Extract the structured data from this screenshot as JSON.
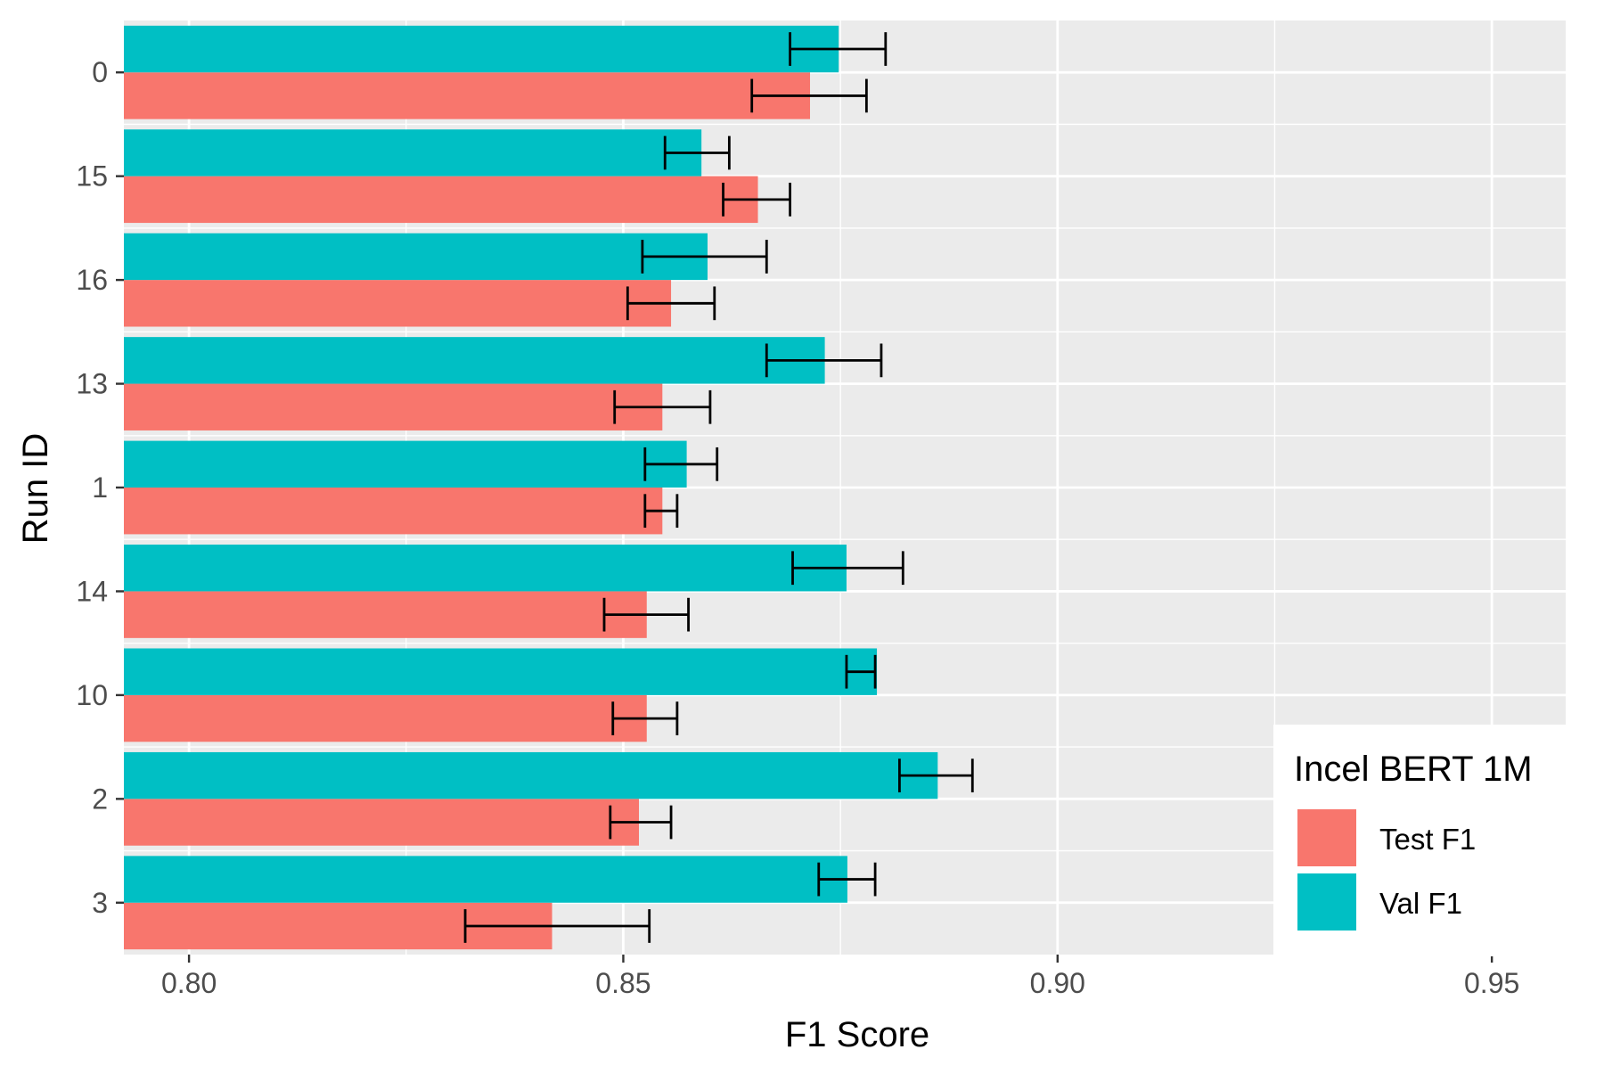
{
  "chart_data": {
    "type": "bar",
    "orientation": "horizontal",
    "xlabel": "F1 Score",
    "ylabel": "Run ID",
    "xlim": [
      0.7925,
      0.9585
    ],
    "x_ticks": [
      "0.80",
      "0.85",
      "0.90",
      "0.95"
    ],
    "x_tick_values": [
      0.8,
      0.85,
      0.9,
      0.95
    ],
    "grid": true,
    "categories": [
      "0",
      "15",
      "16",
      "13",
      "1",
      "14",
      "10",
      "2",
      "3"
    ],
    "series": [
      {
        "name": "Test F1",
        "color": "#F8766D",
        "values": [
          0.8715,
          0.8655,
          0.8555,
          0.8545,
          0.8545,
          0.8527,
          0.8527,
          0.8518,
          0.8418
        ],
        "err_low": [
          0.8648,
          0.8615,
          0.8505,
          0.849,
          0.8525,
          0.8478,
          0.8488,
          0.8485,
          0.8318
        ],
        "err_high": [
          0.878,
          0.8692,
          0.8605,
          0.86,
          0.8562,
          0.8575,
          0.8562,
          0.8555,
          0.853
        ]
      },
      {
        "name": "Val F1",
        "color": "#00BFC4",
        "values": [
          0.8748,
          0.859,
          0.8597,
          0.8732,
          0.8573,
          0.8757,
          0.8792,
          0.8862,
          0.8758
        ],
        "err_low": [
          0.8692,
          0.8548,
          0.8522,
          0.8665,
          0.8525,
          0.8695,
          0.8757,
          0.8818,
          0.8725
        ],
        "err_high": [
          0.8802,
          0.8622,
          0.8665,
          0.8797,
          0.8608,
          0.8822,
          0.879,
          0.8902,
          0.879
        ]
      }
    ],
    "legend": {
      "title": "Incel BERT 1M",
      "placement": "bottom-right-inside"
    }
  }
}
